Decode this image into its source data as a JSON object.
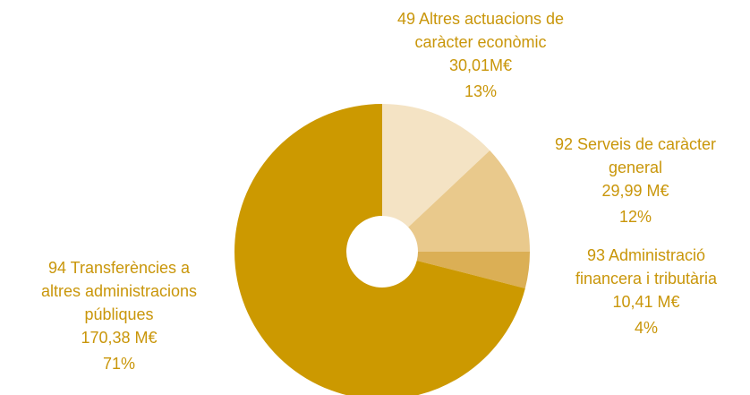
{
  "chart_data": {
    "type": "pie",
    "categories": [
      [
        "49 Altres actuacions de",
        "caràcter econòmic"
      ],
      [
        "92 Serveis de caràcter",
        "general"
      ],
      [
        "93 Administració",
        "financera i tributària"
      ],
      [
        "94 Transferències a",
        "altres administracions",
        "públiques"
      ]
    ],
    "amount_labels": [
      "30,01M€",
      "29,99 M€",
      "10,41 M€",
      "170,38 M€"
    ],
    "values": [
      13,
      12,
      4,
      71
    ],
    "value_labels": [
      "13%",
      "12%",
      "4%",
      "71%"
    ],
    "colors": [
      "#f4e3c4",
      "#e9c98c",
      "#dbaf55",
      "#cc9900"
    ],
    "donut": true
  }
}
